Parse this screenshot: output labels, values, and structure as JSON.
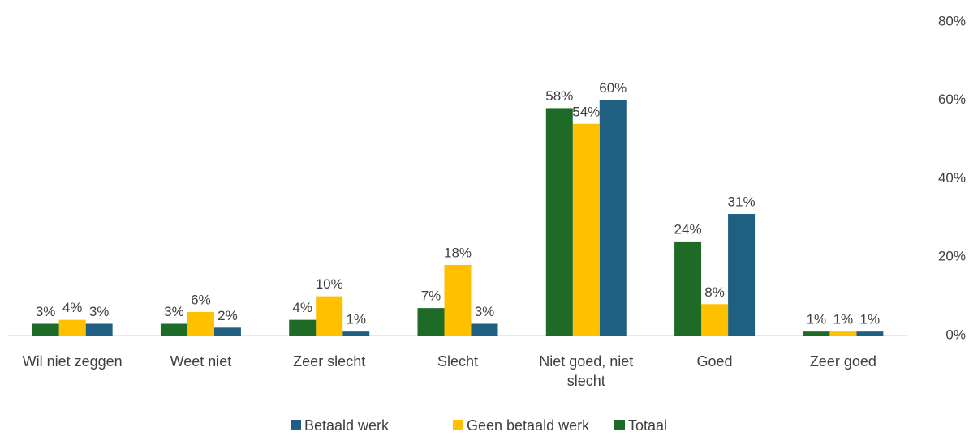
{
  "chart_data": {
    "type": "bar",
    "categories": [
      "Wil niet zeggen",
      "Weet niet",
      "Zeer slecht",
      "Slecht",
      "Niet goed, niet slecht",
      "Goed",
      "Zeer goed"
    ],
    "series": [
      {
        "name": "Betaald werk",
        "color": "#1f5f82",
        "values": [
          3,
          2,
          1,
          3,
          60,
          31,
          1
        ],
        "value_labels": [
          "3%",
          "2%",
          "1%",
          "3%",
          "60%",
          "31%",
          "1%"
        ]
      },
      {
        "name": "Geen betaald werk",
        "color": "#ffc000",
        "values": [
          4,
          6,
          10,
          18,
          54,
          8,
          1
        ],
        "value_labels": [
          "4%",
          "6%",
          "10%",
          "18%",
          "54%",
          "8%",
          "1%"
        ]
      },
      {
        "name": "Totaal",
        "color": "#1e6b27",
        "values": [
          3,
          3,
          4,
          7,
          58,
          24,
          1
        ],
        "value_labels": [
          "3%",
          "3%",
          "4%",
          "7%",
          "58%",
          "24%",
          "1%"
        ]
      }
    ],
    "ylim": [
      0,
      80
    ],
    "yticks": [
      {
        "value": 0,
        "label": "0%"
      },
      {
        "value": 20,
        "label": "20%"
      },
      {
        "value": 40,
        "label": "40%"
      },
      {
        "value": 60,
        "label": "60%"
      },
      {
        "value": 80,
        "label": "80%"
      }
    ],
    "y_axis_side": "right",
    "legend": "bottom"
  }
}
